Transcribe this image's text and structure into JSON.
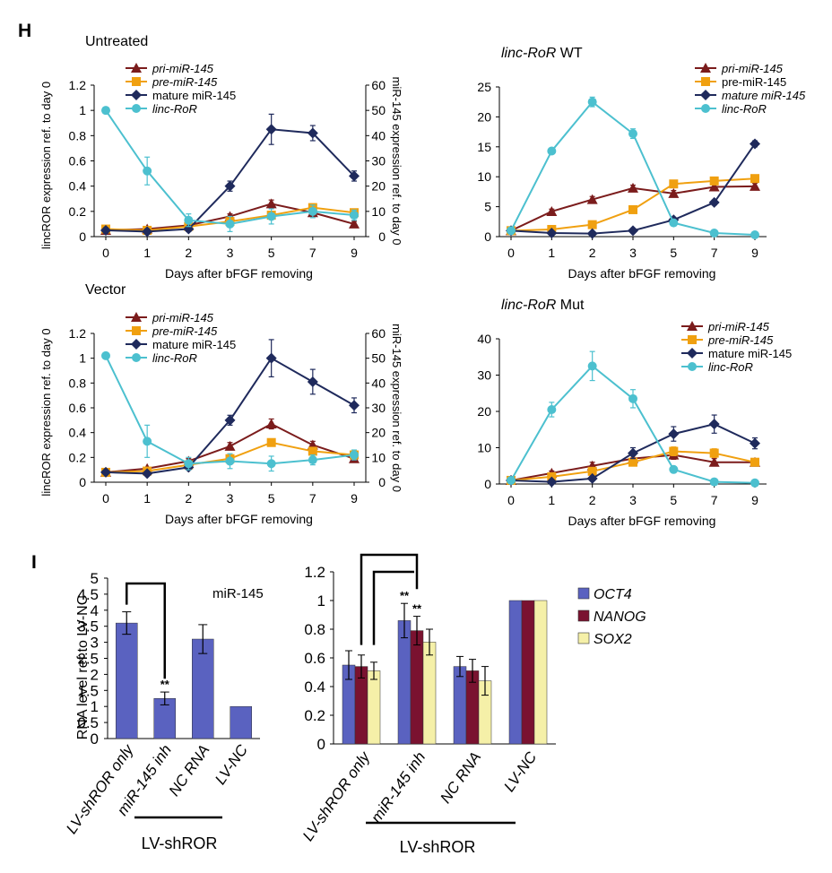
{
  "panel_labels": {
    "H": "H",
    "I": "I"
  },
  "colors": {
    "pri": "#7b1c1c",
    "pre": "#f0a010",
    "mature": "#1f2a5c",
    "linc": "#4cc0cf",
    "oct4": "#5a62c0",
    "nanog": "#7a1230",
    "sox2": "#f5f0a8",
    "axis": "#000000"
  },
  "chart_data": [
    {
      "id": "h1",
      "type": "line",
      "title": "Untreated",
      "x": [
        0,
        1,
        2,
        3,
        5,
        7,
        9
      ],
      "xlabel": "Days after bFGF removing",
      "ylabel": "lincROR  expression ref. to day 0",
      "y2label": "miR-145 expression ref. to day 0",
      "ylim": [
        0,
        1.2
      ],
      "yticks": [
        0,
        0.2,
        0.4,
        0.6,
        0.8,
        1,
        1.2
      ],
      "y2lim": [
        0,
        60
      ],
      "y2ticks": [
        0,
        10,
        20,
        30,
        40,
        50,
        60
      ],
      "legend": "top-center",
      "series": [
        {
          "name": "pri-miR-145",
          "key": "pri",
          "axis": "right",
          "marker": "triangle",
          "italic": true,
          "values": [
            2.5,
            3,
            4.5,
            8,
            13,
            9.5,
            5
          ],
          "errors": [
            0.5,
            0.5,
            1,
            1,
            1.5,
            1,
            1
          ]
        },
        {
          "name": "pre-miR-145",
          "key": "pre",
          "axis": "right",
          "marker": "square",
          "italic": true,
          "values": [
            3,
            2.5,
            4,
            6,
            8.5,
            11.5,
            9.5
          ],
          "errors": [
            0.5,
            0.5,
            0.8,
            1,
            1.5,
            1.5,
            1
          ]
        },
        {
          "name": "mature miR-145",
          "key": "mature",
          "axis": "right",
          "marker": "diamond",
          "italic": false,
          "values": [
            2.5,
            2,
            3,
            20,
            42.5,
            41,
            24
          ],
          "errors": [
            1,
            1,
            1,
            2,
            6,
            3,
            2
          ]
        },
        {
          "name": "linc-RoR",
          "key": "linc",
          "axis": "left",
          "marker": "circle",
          "italic": true,
          "values": [
            1,
            0.52,
            0.13,
            0.1,
            0.16,
            0.2,
            0.17
          ],
          "errors": [
            0,
            0.11,
            0.05,
            0.06,
            0.06,
            0.05,
            0.04
          ]
        }
      ]
    },
    {
      "id": "h2",
      "type": "line",
      "title_italic": "linc-RoR",
      "title_rest": " WT",
      "x": [
        0,
        1,
        2,
        3,
        5,
        7,
        9
      ],
      "xlabel": "Days after bFGF removing",
      "ylim": [
        0,
        25
      ],
      "yticks": [
        0,
        5,
        10,
        15,
        20,
        25
      ],
      "legend": "top-right",
      "series": [
        {
          "name": "pri-miR-145",
          "key": "pri",
          "marker": "triangle",
          "italic": true,
          "values": [
            1,
            4.2,
            6.2,
            8.1,
            7.2,
            8.3,
            8.4
          ],
          "errors": [
            0,
            0.4,
            0.5,
            0.5,
            0.5,
            0.5,
            0.5
          ]
        },
        {
          "name": "pre-miR-145",
          "key": "pre",
          "marker": "square",
          "italic": false,
          "values": [
            1,
            1.2,
            2,
            4.5,
            8.8,
            9.3,
            9.7
          ],
          "errors": [
            0,
            0.2,
            0.3,
            0.4,
            0.5,
            0.5,
            0.5
          ]
        },
        {
          "name": "mature miR-145",
          "key": "mature",
          "marker": "diamond",
          "italic": true,
          "values": [
            1,
            0.6,
            0.5,
            1,
            2.8,
            5.7,
            15.5
          ],
          "errors": [
            0,
            0.1,
            0.1,
            0.2,
            0.3,
            0.4,
            0.5
          ]
        },
        {
          "name": "linc-RoR",
          "key": "linc",
          "marker": "circle",
          "italic": true,
          "values": [
            1,
            14.3,
            22.5,
            17.2,
            2.3,
            0.6,
            0.3
          ],
          "errors": [
            0,
            0.4,
            0.8,
            0.8,
            0.4,
            0.2,
            0.1
          ]
        }
      ]
    },
    {
      "id": "h3",
      "type": "line",
      "title": "Vector",
      "x": [
        0,
        1,
        2,
        3,
        5,
        7,
        9
      ],
      "xlabel": "Days after bFGF removing",
      "ylabel": "lincROR  expression ref. to day 0",
      "y2label": "miR-145 expression ref. to day 0",
      "ylim": [
        0,
        1.2
      ],
      "yticks": [
        0,
        0.2,
        0.4,
        0.6,
        0.8,
        1,
        1.2
      ],
      "y2lim": [
        0,
        60
      ],
      "y2ticks": [
        0,
        10,
        20,
        30,
        40,
        50,
        60
      ],
      "legend": "top-center",
      "series": [
        {
          "name": "pri-miR-145",
          "key": "pri",
          "axis": "right",
          "marker": "triangle",
          "italic": true,
          "values": [
            4,
            5.5,
            8.5,
            14.5,
            23.5,
            15,
            9.5
          ],
          "errors": [
            0.5,
            0.5,
            1,
            1.5,
            2,
            1.5,
            1.5
          ]
        },
        {
          "name": "pre-miR-145",
          "key": "pre",
          "axis": "right",
          "marker": "square",
          "italic": true,
          "values": [
            4,
            4.5,
            7,
            9.5,
            16,
            12.5,
            11
          ],
          "errors": [
            0.5,
            0.5,
            1,
            1,
            1.5,
            1.5,
            1.5
          ]
        },
        {
          "name": "mature miR-145",
          "key": "mature",
          "axis": "right",
          "marker": "diamond",
          "italic": false,
          "values": [
            4,
            3.5,
            6,
            25,
            50,
            40.5,
            31
          ],
          "errors": [
            0.5,
            0.5,
            1,
            2,
            7.5,
            5,
            3
          ]
        },
        {
          "name": "linc-RoR",
          "key": "linc",
          "axis": "left",
          "marker": "circle",
          "italic": true,
          "values": [
            1.02,
            0.33,
            0.15,
            0.17,
            0.15,
            0.18,
            0.22
          ],
          "errors": [
            0,
            0.13,
            0.05,
            0.06,
            0.06,
            0.04,
            0.04
          ]
        }
      ]
    },
    {
      "id": "h4",
      "type": "line",
      "title_italic": "linc-RoR",
      "title_rest": " Mut",
      "x": [
        0,
        1,
        2,
        3,
        5,
        7,
        9
      ],
      "xlabel": "Days after bFGF removing",
      "ylim": [
        0,
        40
      ],
      "yticks": [
        0,
        10,
        20,
        30,
        40
      ],
      "legend": "top-right",
      "series": [
        {
          "name": "pri-miR-145",
          "key": "pri",
          "marker": "triangle",
          "italic": true,
          "values": [
            1,
            3,
            5,
            7,
            8,
            6,
            6
          ],
          "errors": [
            0,
            0.6,
            1,
            1,
            1.2,
            1,
            1
          ]
        },
        {
          "name": "pre-miR-145",
          "key": "pre",
          "marker": "square",
          "italic": true,
          "values": [
            1,
            2,
            3.5,
            6,
            9,
            8.5,
            6
          ],
          "errors": [
            0,
            0.5,
            0.7,
            1,
            1.2,
            1.2,
            1
          ]
        },
        {
          "name": "mature miR-145",
          "key": "mature",
          "marker": "diamond",
          "italic": false,
          "values": [
            1,
            0.6,
            1.5,
            8.5,
            13.8,
            16.5,
            11.2
          ],
          "errors": [
            0,
            0.2,
            0.3,
            1.5,
            2,
            2.5,
            1.5
          ]
        },
        {
          "name": "linc-RoR",
          "key": "linc",
          "marker": "circle",
          "italic": true,
          "values": [
            1,
            20.5,
            32.5,
            23.5,
            4,
            0.6,
            0.3
          ],
          "errors": [
            0,
            2,
            4,
            2.5,
            0.5,
            0.2,
            0.1
          ]
        }
      ]
    },
    {
      "id": "i1",
      "type": "bar",
      "title": "miR-145",
      "ylabel": "RNA level ref.to LV-NC",
      "ylim": [
        0,
        5
      ],
      "yticks": [
        0,
        0.5,
        1,
        1.5,
        2,
        2.5,
        3,
        3.5,
        4,
        4.5,
        5
      ],
      "categories": [
        "LV-shROR only",
        "miR-145 inh",
        "NC RNA",
        "LV-NC"
      ],
      "category_italic": [
        true,
        true,
        true,
        true
      ],
      "values": [
        3.6,
        1.25,
        3.1,
        1.0
      ],
      "errors": [
        0.35,
        0.2,
        0.45,
        0
      ],
      "significance": [
        {
          "index": 1,
          "label": "**"
        }
      ],
      "bracket": {
        "from": 0,
        "to": 1
      },
      "group_label": "LV-shROR"
    },
    {
      "id": "i2",
      "type": "bar",
      "ylim": [
        0,
        1.2
      ],
      "yticks": [
        0,
        0.2,
        0.4,
        0.6,
        0.8,
        1,
        1.2
      ],
      "categories": [
        "LV-shROR only",
        "miR-145 inh",
        "NC RNA",
        "LV-NC"
      ],
      "category_italic": [
        true,
        true,
        true,
        true
      ],
      "legend": "right",
      "series": [
        {
          "name": "OCT4",
          "key": "oct4",
          "italic": true,
          "values": [
            0.55,
            0.86,
            0.54,
            1.0
          ],
          "errors": [
            0.1,
            0.12,
            0.07,
            0
          ]
        },
        {
          "name": "NANOG",
          "key": "nanog",
          "italic": true,
          "values": [
            0.54,
            0.79,
            0.51,
            1.0
          ],
          "errors": [
            0.08,
            0.1,
            0.08,
            0
          ]
        },
        {
          "name": "SOX2",
          "key": "sox2",
          "italic": true,
          "values": [
            0.51,
            0.71,
            0.44,
            1.0
          ],
          "errors": [
            0.06,
            0.09,
            0.1,
            0
          ]
        }
      ],
      "significance": [
        {
          "index": 1,
          "series": 0,
          "label": "**"
        },
        {
          "index": 1,
          "series": 1,
          "label": "**"
        }
      ],
      "group_label": "LV-shROR"
    }
  ]
}
